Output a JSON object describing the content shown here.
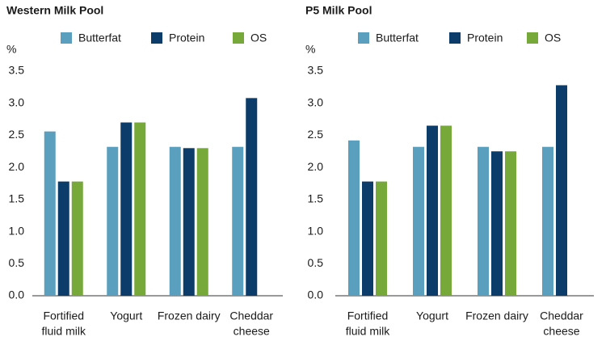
{
  "chart_data": [
    {
      "type": "bar",
      "title": "Western Milk Pool",
      "y_label": "%",
      "categories": [
        [
          "Fortified",
          "fluid milk"
        ],
        [
          "Yogurt"
        ],
        [
          "Frozen dairy"
        ],
        [
          "Cheddar",
          "cheese"
        ]
      ],
      "series": [
        {
          "name": "Butterfat",
          "color": "#5a9fbd",
          "values": [
            2.56,
            2.32,
            2.32,
            2.32
          ]
        },
        {
          "name": "Protein",
          "color": "#0c3d6a",
          "values": [
            1.78,
            2.7,
            2.3,
            3.08
          ]
        },
        {
          "name": "OS",
          "color": "#76a83a",
          "values": [
            1.78,
            2.7,
            2.3,
            null
          ]
        }
      ],
      "ylim": [
        0,
        3.5
      ],
      "yticks": [
        {
          "value": 0,
          "label": "0.0"
        },
        0.5,
        {
          "value": 1,
          "label": "1.0"
        },
        1.5,
        {
          "value": 2,
          "label": "2.0"
        },
        2.5,
        {
          "value": 3,
          "label": "3.0"
        },
        3.5
      ],
      "grid": false
    },
    {
      "type": "bar",
      "title": "P5 Milk Pool",
      "y_label": "%",
      "categories": [
        [
          "Fortified",
          "fluid milk"
        ],
        [
          "Yogurt"
        ],
        [
          "Frozen dairy"
        ],
        [
          "Cheddar",
          "cheese"
        ]
      ],
      "series": [
        {
          "name": "Butterfat",
          "color": "#5a9fbd",
          "values": [
            2.42,
            2.32,
            2.32,
            2.32
          ]
        },
        {
          "name": "Protein",
          "color": "#0c3d6a",
          "values": [
            1.78,
            2.65,
            2.25,
            3.28
          ]
        },
        {
          "name": "OS",
          "color": "#76a83a",
          "values": [
            1.78,
            2.65,
            2.25,
            null
          ]
        }
      ],
      "ylim": [
        0,
        3.5
      ],
      "yticks": [
        {
          "value": 0,
          "label": "0.0"
        },
        0.5,
        {
          "value": 1,
          "label": "1.0"
        },
        1.5,
        {
          "value": 2,
          "label": "2.0"
        },
        2.5,
        {
          "value": 3,
          "label": "3.0"
        },
        3.5
      ],
      "grid": false
    }
  ]
}
